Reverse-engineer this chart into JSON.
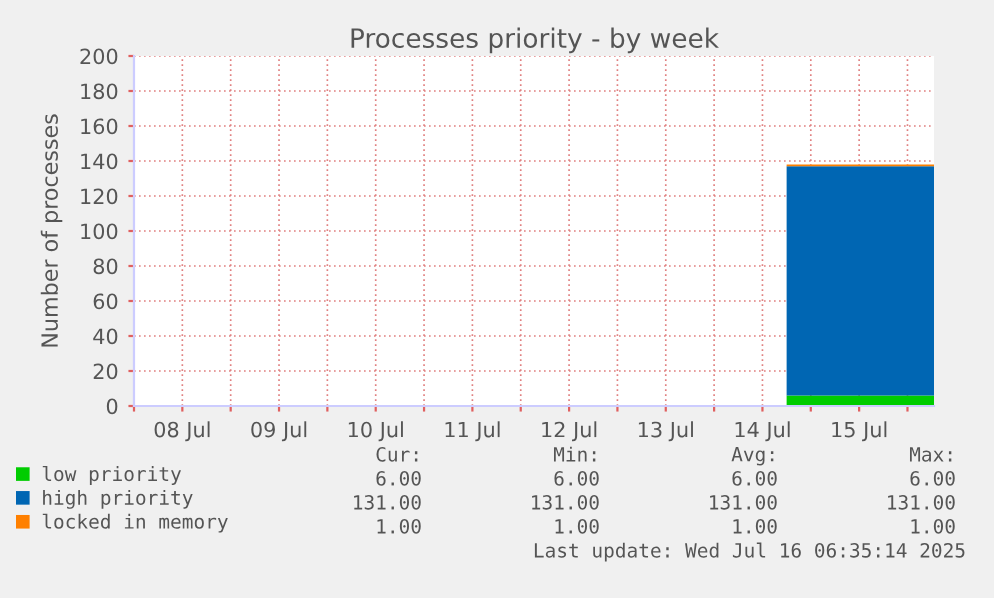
{
  "chart_data": {
    "type": "area",
    "stacked": true,
    "title": "Processes priority - by week",
    "ylabel": "Number of processes",
    "x": [
      "2025-07-14T18:00",
      "2025-07-16T06:35"
    ],
    "series": [
      {
        "name": "low priority",
        "color": "#00cc00",
        "values": [
          6,
          6
        ]
      },
      {
        "name": "high priority",
        "color": "#0066b3",
        "values": [
          131,
          131
        ]
      },
      {
        "name": "locked in memory",
        "color": "#ff8000",
        "values": [
          1,
          1
        ]
      }
    ],
    "xlim": [
      "2025-07-08T00:00",
      "2025-07-16T06:35"
    ],
    "xticks": [
      {
        "value": "2025-07-08T00:00",
        "label": null
      },
      {
        "value": "2025-07-08T12:00",
        "label": "08 Jul"
      },
      {
        "value": "2025-07-09T00:00",
        "label": null
      },
      {
        "value": "2025-07-09T12:00",
        "label": "09 Jul"
      },
      {
        "value": "2025-07-10T00:00",
        "label": null
      },
      {
        "value": "2025-07-10T12:00",
        "label": "10 Jul"
      },
      {
        "value": "2025-07-11T00:00",
        "label": null
      },
      {
        "value": "2025-07-11T12:00",
        "label": "11 Jul"
      },
      {
        "value": "2025-07-12T00:00",
        "label": null
      },
      {
        "value": "2025-07-12T12:00",
        "label": "12 Jul"
      },
      {
        "value": "2025-07-13T00:00",
        "label": null
      },
      {
        "value": "2025-07-13T12:00",
        "label": "13 Jul"
      },
      {
        "value": "2025-07-14T00:00",
        "label": null
      },
      {
        "value": "2025-07-14T12:00",
        "label": "14 Jul"
      },
      {
        "value": "2025-07-15T00:00",
        "label": null
      },
      {
        "value": "2025-07-15T12:00",
        "label": "15 Jul"
      },
      {
        "value": "2025-07-16T00:00",
        "label": null
      }
    ],
    "ylim": [
      0,
      200
    ],
    "yticks": [
      0,
      20,
      40,
      60,
      80,
      100,
      120,
      140,
      160,
      180,
      200
    ],
    "grid": true,
    "legend": "bottom left",
    "annotations": [
      "Cur:",
      "Min:",
      "Avg:",
      "Max:",
      "6.00",
      "6.00",
      "6.00",
      "6.00",
      "131.00",
      "131.00",
      "131.00",
      "131.00",
      "1.00",
      "1.00",
      "1.00",
      "1.00",
      "Last update: Wed Jul 16 06:35:14 2025"
    ]
  }
}
